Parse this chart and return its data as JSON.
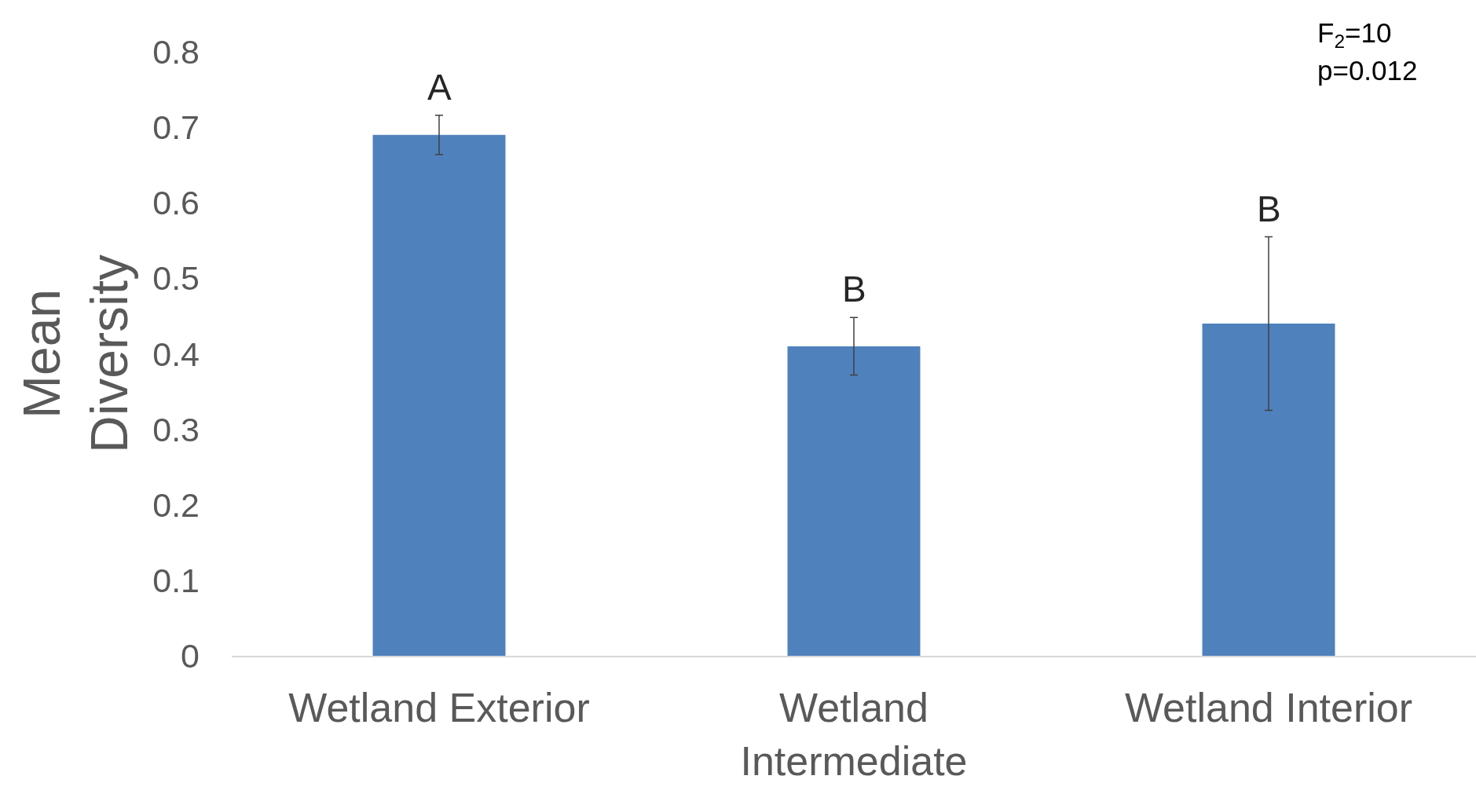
{
  "chart_data": {
    "type": "bar",
    "categories": [
      "Wetland Exterior",
      "Wetland Intermediate",
      "Wetland Interior"
    ],
    "values": [
      0.69,
      0.41,
      0.44
    ],
    "errors": [
      0.026,
      0.038,
      0.115
    ],
    "value_labels": [
      "A",
      "B",
      "B"
    ],
    "color": "#4f81bd",
    "ylabel": "Mean Diversity",
    "ylim": [
      0,
      0.8
    ],
    "yticks": [
      0,
      0.1,
      0.2,
      0.3,
      0.4,
      0.5,
      0.6,
      0.7,
      0.8
    ],
    "grid": false,
    "annotations": [
      "F$_{2}$=10",
      "p=0.012"
    ]
  }
}
